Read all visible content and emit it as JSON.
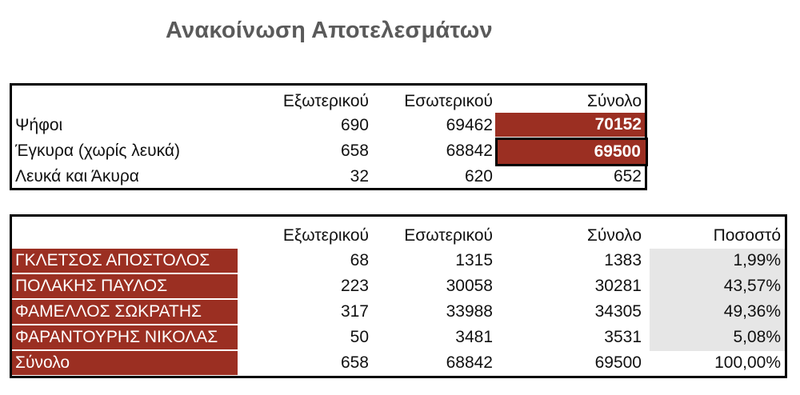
{
  "title": "Ανακοίνωση Αποτελεσμάτων",
  "colors": {
    "accent_red": "#9b2f22",
    "grey_cell": "#e6e6e6",
    "title_grey": "#5a5a5a"
  },
  "summary_table": {
    "headers": [
      "Εξωτερικού",
      "Εσωτερικού",
      "Σύνολο"
    ],
    "rows": [
      {
        "label": "Ψήφοι",
        "values": [
          "690",
          "69462",
          "70152"
        ]
      },
      {
        "label": "Έγκυρα (χωρίς λευκά)",
        "values": [
          "658",
          "68842",
          "69500"
        ]
      },
      {
        "label": "Λευκά και Άκυρα",
        "values": [
          "32",
          "620",
          "652"
        ]
      }
    ]
  },
  "candidates_table": {
    "headers": [
      "Εξωτερικού",
      "Εσωτερικού",
      "Σύνολο",
      "Ποσοστό"
    ],
    "rows": [
      {
        "label": "ΓΚΛΕΤΣΟΣ ΑΠΟΣΤΟΛΟΣ",
        "values": [
          "68",
          "1315",
          "1383",
          "1,99%"
        ]
      },
      {
        "label": "ΠΟΛΑΚΗΣ ΠΑΥΛΟΣ",
        "values": [
          "223",
          "30058",
          "30281",
          "43,57%"
        ]
      },
      {
        "label": "ΦΑΜΕΛΛΟΣ ΣΩΚΡΑΤΗΣ",
        "values": [
          "317",
          "33988",
          "34305",
          "49,36%"
        ]
      },
      {
        "label": "ΦΑΡΑΝΤΟΥΡΗΣ ΝΙΚΟΛΑΣ",
        "values": [
          "50",
          "3481",
          "3531",
          "5,08%"
        ]
      },
      {
        "label": "Σύνολο",
        "values": [
          "658",
          "68842",
          "69500",
          "100,00%"
        ]
      }
    ]
  }
}
